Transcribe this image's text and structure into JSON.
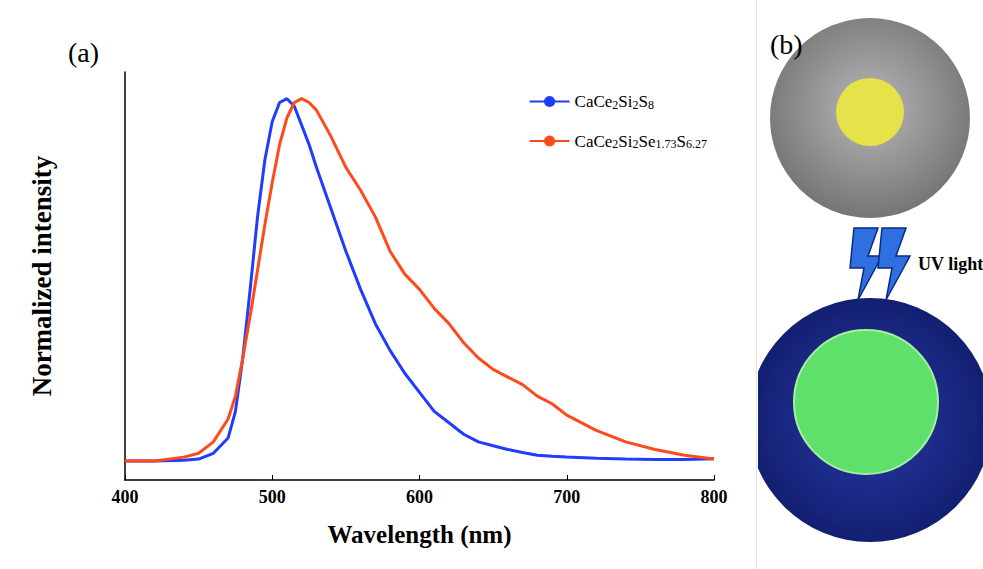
{
  "chart_data": {
    "type": "line",
    "panel_label": "(a)",
    "x_label": "Wavelength (nm)",
    "y_label": "Normalized intensity",
    "xlim": [
      400,
      800
    ],
    "xticks": [
      400,
      500,
      600,
      700,
      800
    ],
    "ylim": [
      0,
      1.07
    ],
    "tick_labels": "x",
    "grid": false,
    "legend": "upper right",
    "x": [
      400,
      420,
      440,
      450,
      460,
      470,
      475,
      480,
      485,
      490,
      495,
      500,
      505,
      510,
      515,
      520,
      525,
      530,
      540,
      550,
      560,
      570,
      580,
      590,
      600,
      610,
      620,
      630,
      640,
      650,
      660,
      670,
      680,
      690,
      700,
      720,
      740,
      760,
      780,
      800
    ],
    "series": [
      {
        "name": "CaCe2Si2S8",
        "color": "#1f3cff",
        "line_style": "solid",
        "marker": "none",
        "values": [
          0.05,
          0.05,
          0.052,
          0.055,
          0.07,
          0.11,
          0.18,
          0.32,
          0.5,
          0.69,
          0.84,
          0.94,
          0.99,
          1.0,
          0.98,
          0.93,
          0.88,
          0.82,
          0.71,
          0.6,
          0.5,
          0.41,
          0.34,
          0.28,
          0.23,
          0.18,
          0.15,
          0.12,
          0.1,
          0.09,
          0.08,
          0.072,
          0.065,
          0.062,
          0.06,
          0.057,
          0.055,
          0.054,
          0.054,
          0.056
        ]
      },
      {
        "name": "CaCe2Si2Se1.73S6.27",
        "color": "#ff4a1c",
        "line_style": "solid",
        "marker": "none",
        "values": [
          0.05,
          0.05,
          0.06,
          0.07,
          0.1,
          0.16,
          0.22,
          0.32,
          0.43,
          0.55,
          0.67,
          0.78,
          0.88,
          0.95,
          0.99,
          1.0,
          0.99,
          0.97,
          0.9,
          0.82,
          0.76,
          0.69,
          0.6,
          0.54,
          0.5,
          0.45,
          0.41,
          0.36,
          0.32,
          0.29,
          0.27,
          0.25,
          0.22,
          0.2,
          0.17,
          0.13,
          0.1,
          0.08,
          0.065,
          0.055
        ]
      }
    ]
  },
  "panel_b": {
    "label": "(b)",
    "annotation": "UV light"
  }
}
